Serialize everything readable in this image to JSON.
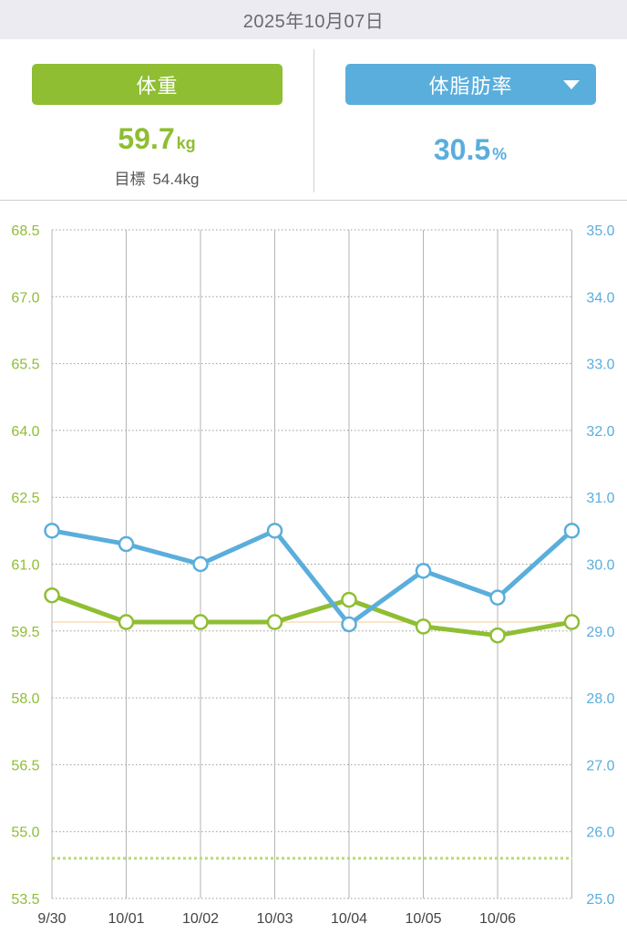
{
  "header": {
    "date": "2025年10月07日"
  },
  "weight_panel": {
    "button_label": "体重",
    "value": "59.7",
    "unit": "kg",
    "goal_label": "目標",
    "goal_value": "54.4kg"
  },
  "fat_panel": {
    "button_label": "体脂肪率",
    "dropdown_icon": "caret-down-icon",
    "value": "30.5",
    "unit": "%"
  },
  "colors": {
    "weight": "#8fbe33",
    "fat": "#5aaedc",
    "goal_line": "#b9d97a",
    "current_line": "#f6c99a",
    "grid": "#9a9a9a"
  },
  "chart_data": {
    "type": "line",
    "x": [
      "9/30",
      "10/01",
      "10/02",
      "10/03",
      "10/04",
      "10/05",
      "10/06",
      "10/07"
    ],
    "x_tick_labels": [
      "9/30",
      "10/01",
      "10/02",
      "10/03",
      "10/04",
      "10/05",
      "10/06"
    ],
    "left_axis": {
      "ylim": [
        53.5,
        68.5
      ],
      "ticks": [
        "68.5",
        "67.0",
        "65.5",
        "64.0",
        "62.5",
        "61.0",
        "59.5",
        "58.0",
        "56.5",
        "55.0",
        "53.5"
      ]
    },
    "right_axis": {
      "ylim": [
        25.0,
        35.0
      ],
      "ticks": [
        "35.0",
        "34.0",
        "33.0",
        "32.0",
        "31.0",
        "30.0",
        "29.0",
        "28.0",
        "27.0",
        "26.0",
        "25.0"
      ]
    },
    "series": [
      {
        "key": "weight",
        "axis": "left",
        "values": [
          60.3,
          59.7,
          59.7,
          59.7,
          60.2,
          59.6,
          59.4,
          59.7
        ]
      },
      {
        "key": "fat",
        "axis": "right",
        "values": [
          30.5,
          30.3,
          30.0,
          30.5,
          29.1,
          29.9,
          29.5,
          30.5
        ]
      }
    ],
    "goal_weight": 54.4,
    "current_weight": 59.7,
    "grid": true
  }
}
